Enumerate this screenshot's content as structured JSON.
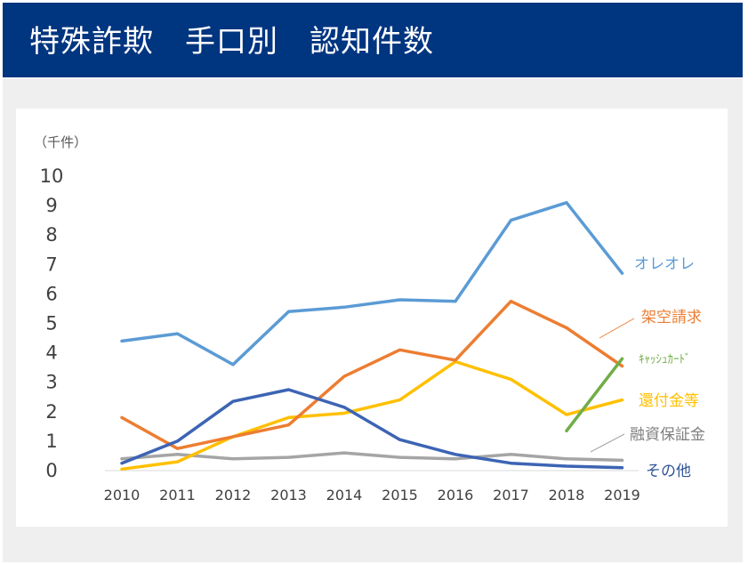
{
  "header": {
    "title": "特殊詐欺　手口別　認知件数"
  },
  "chart_data": {
    "type": "line",
    "unit_label": "（千件）",
    "x": [
      "2010",
      "2011",
      "2012",
      "2013",
      "2014",
      "2015",
      "2016",
      "2017",
      "2018",
      "2019"
    ],
    "ylim": [
      0,
      10
    ],
    "yticks": [
      "0",
      "1",
      "2",
      "3",
      "4",
      "5",
      "6",
      "7",
      "8",
      "9",
      "10"
    ],
    "grid": false,
    "legend": "inline labels at right end of lines",
    "series": [
      {
        "name": "オレオレ",
        "color": "#5b9bd5",
        "values": [
          4.4,
          4.65,
          3.6,
          5.4,
          5.55,
          5.8,
          5.75,
          8.5,
          9.1,
          6.7
        ]
      },
      {
        "name": "架空請求",
        "color": "#ed7d31",
        "values": [
          1.8,
          0.75,
          1.15,
          1.55,
          3.2,
          4.1,
          3.75,
          5.75,
          4.85,
          3.55
        ]
      },
      {
        "name": "キャッシュカード",
        "label": "ｷｬｯｼｭｶｰﾄﾞ",
        "color": "#70ad47",
        "values": [
          null,
          null,
          null,
          null,
          null,
          null,
          null,
          null,
          1.35,
          3.8
        ]
      },
      {
        "name": "還付金等",
        "color": "#ffc000",
        "values": [
          0.05,
          0.3,
          1.15,
          1.8,
          1.95,
          2.4,
          3.7,
          3.1,
          1.9,
          2.4
        ]
      },
      {
        "name": "融資保証金",
        "color": "#a5a5a5",
        "values": [
          0.4,
          0.55,
          0.4,
          0.45,
          0.6,
          0.45,
          0.4,
          0.55,
          0.4,
          0.35
        ]
      },
      {
        "name": "その他",
        "color": "#3d64b4",
        "values": [
          0.25,
          1.0,
          2.35,
          2.75,
          2.15,
          1.05,
          0.55,
          0.25,
          0.15,
          0.1
        ]
      }
    ]
  }
}
